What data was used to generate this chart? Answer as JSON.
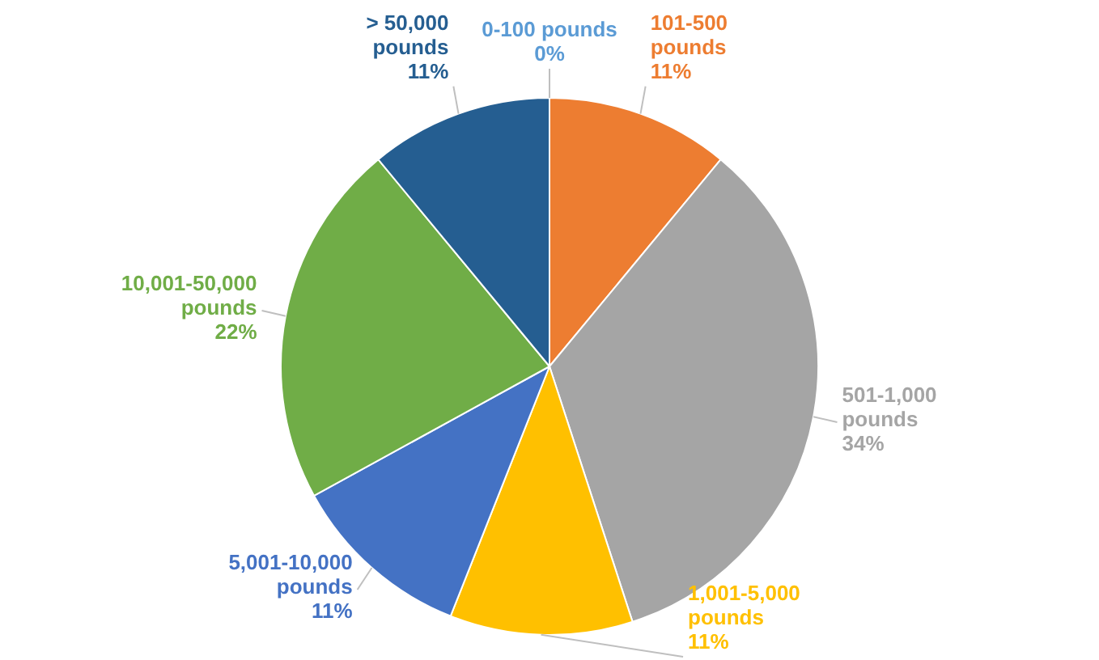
{
  "chart_data": {
    "type": "pie",
    "categories": [
      "0-100 pounds",
      "101-500 pounds",
      "501-1,000 pounds",
      "1,001-5,000 pounds",
      "5,001-10,000 pounds",
      "10,001-50,000 pounds",
      "> 50,000 pounds"
    ],
    "values": [
      0,
      11,
      34,
      11,
      11,
      22,
      11
    ],
    "value_labels": [
      "0%",
      "11%",
      "34%",
      "11%",
      "11%",
      "22%",
      "11%"
    ],
    "colors": [
      "#5b9bd5",
      "#ed7d31",
      "#a5a5a5",
      "#ffc000",
      "#4472c4",
      "#70ad47",
      "#255e91"
    ],
    "legend": false
  }
}
